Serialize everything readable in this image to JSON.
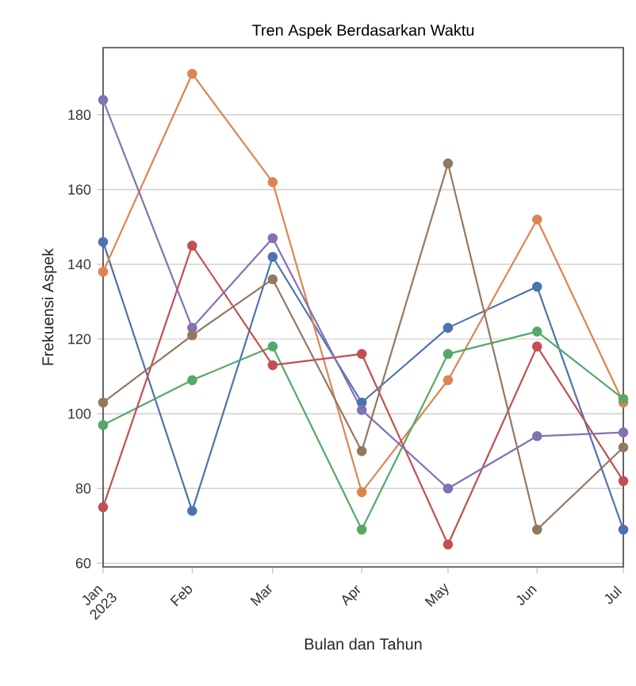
{
  "chart_data": {
    "type": "line",
    "title": "Tren Aspek Berdasarkan Waktu",
    "xlabel": "Bulan dan Tahun",
    "ylabel": "Frekuensi Aspek",
    "x": [
      "2023-01",
      "2023-02",
      "2023-03",
      "2023-04",
      "2023-05",
      "2023-06",
      "2023-07"
    ],
    "series": [
      {
        "color": "#4c72b0",
        "values": [
          146,
          74,
          142,
          103,
          123,
          134,
          69
        ]
      },
      {
        "color": "#dd8452",
        "values": [
          138,
          191,
          162,
          79,
          109,
          152,
          103
        ]
      },
      {
        "color": "#55a868",
        "values": [
          97,
          109,
          118,
          69,
          116,
          122,
          104
        ]
      },
      {
        "color": "#c44e52",
        "values": [
          75,
          145,
          113,
          116,
          65,
          118,
          82
        ]
      },
      {
        "color": "#8172b3",
        "values": [
          184,
          123,
          147,
          101,
          80,
          94,
          95
        ]
      },
      {
        "color": "#937860",
        "values": [
          103,
          121,
          136,
          90,
          167,
          69,
          91
        ]
      }
    ],
    "xlim": [
      "2023-01",
      "2023-07"
    ],
    "xticks": [
      {
        "value": "2023-01",
        "label": "Jan 2023"
      },
      {
        "value": "2023-02",
        "label": "Feb"
      },
      {
        "value": "2023-03",
        "label": "Mar"
      },
      {
        "value": "2023-04",
        "label": "Apr"
      },
      {
        "value": "2023-05",
        "label": "May"
      },
      {
        "value": "2023-06",
        "label": "Jun"
      },
      {
        "value": "2023-07",
        "label": "Jul"
      }
    ],
    "ylim": [
      59,
      198
    ],
    "yticks": [
      60,
      80,
      100,
      120,
      140,
      160,
      180
    ],
    "grid": "y",
    "marker": "circle",
    "line_style": "solid"
  }
}
